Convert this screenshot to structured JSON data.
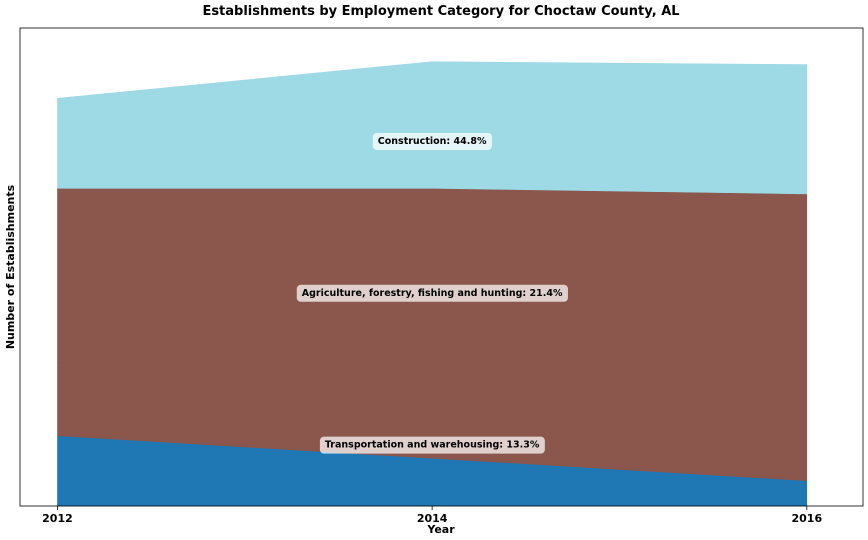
{
  "chart_data": {
    "type": "area",
    "stacked": true,
    "title": "Establishments by Employment Category for Choctaw County, AL",
    "xlabel": "Year",
    "ylabel": "Number of Establishments",
    "x": [
      2012,
      2014,
      2016
    ],
    "xticks": [
      "2012",
      "2014",
      "2016"
    ],
    "ylim": [
      0,
      85
    ],
    "yticks_visible": false,
    "grid": false,
    "legend": "none",
    "series": [
      {
        "id": "transport",
        "values": [
          12.5,
          8.5,
          4.5
        ],
        "color": "#1f77b4"
      },
      {
        "id": "gap",
        "values": [
          13.0,
          13.0,
          13.0
        ],
        "color": "#8b564b"
      },
      {
        "id": "agriculture",
        "values": [
          31.0,
          35.0,
          38.0
        ],
        "color": "#8b564b"
      },
      {
        "id": "construction",
        "values": [
          16.0,
          22.5,
          23.0
        ],
        "color": "#9ed9e6"
      }
    ],
    "annotations": [
      {
        "text": "Transportation and warehousing: 13.3%",
        "x": 2014,
        "y": 11.0
      },
      {
        "text": "Agriculture, forestry, fishing and hunting: 21.4%",
        "x": 2014,
        "y": 38.0
      },
      {
        "text": "Construction: 44.8%",
        "x": 2014,
        "y": 65.0
      }
    ]
  }
}
